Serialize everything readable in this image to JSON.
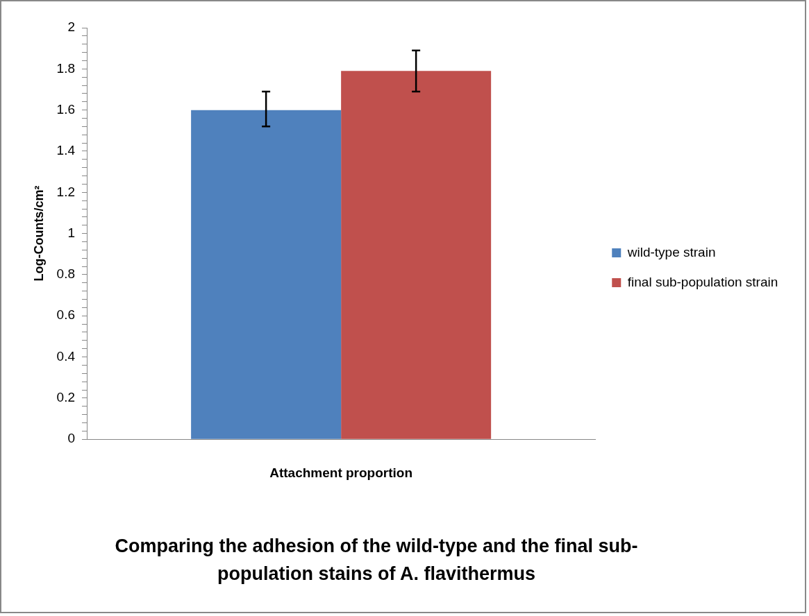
{
  "chart_data": {
    "type": "bar",
    "title": "Comparing the adhesion of the wild-type and the final sub-population stains of A. flavithermus",
    "ylabel": "Log-Counts/cm²",
    "categories": [
      "Attachment proportion"
    ],
    "series": [
      {
        "name": "wild-type strain",
        "color": "#4f81bd",
        "values": [
          1.6
        ],
        "errors": [
          [
            1.52,
            1.69
          ]
        ]
      },
      {
        "name": "final sub-population strain",
        "color": "#c0504d",
        "values": [
          1.79
        ],
        "errors": [
          [
            1.69,
            1.89
          ]
        ]
      }
    ],
    "ylim": [
      0,
      2
    ],
    "yticks": [
      0,
      {
        "value": 0.04,
        "label": null
      },
      {
        "value": 0.08,
        "label": null
      },
      {
        "value": 0.12,
        "label": null
      },
      {
        "value": 0.16,
        "label": null
      },
      0.2,
      {
        "value": 0.24,
        "label": null
      },
      {
        "value": 0.28,
        "label": null
      },
      {
        "value": 0.32,
        "label": null
      },
      {
        "value": 0.36,
        "label": null
      },
      0.4,
      {
        "value": 0.44,
        "label": null
      },
      {
        "value": 0.48,
        "label": null
      },
      {
        "value": 0.52,
        "label": null
      },
      {
        "value": 0.56,
        "label": null
      },
      0.6,
      {
        "value": 0.64,
        "label": null
      },
      {
        "value": 0.68,
        "label": null
      },
      {
        "value": 0.72,
        "label": null
      },
      {
        "value": 0.76,
        "label": null
      },
      0.8,
      {
        "value": 0.84,
        "label": null
      },
      {
        "value": 0.88,
        "label": null
      },
      {
        "value": 0.92,
        "label": null
      },
      {
        "value": 0.96,
        "label": null
      },
      1,
      {
        "value": 1.04,
        "label": null
      },
      {
        "value": 1.08,
        "label": null
      },
      {
        "value": 1.12,
        "label": null
      },
      {
        "value": 1.16,
        "label": null
      },
      1.2,
      {
        "value": 1.24,
        "label": null
      },
      {
        "value": 1.28,
        "label": null
      },
      {
        "value": 1.32,
        "label": null
      },
      {
        "value": 1.36,
        "label": null
      },
      1.4,
      {
        "value": 1.44,
        "label": null
      },
      {
        "value": 1.48,
        "label": null
      },
      {
        "value": 1.52,
        "label": null
      },
      {
        "value": 1.56,
        "label": null
      },
      1.6,
      {
        "value": 1.64,
        "label": null
      },
      {
        "value": 1.68,
        "label": null
      },
      {
        "value": 1.72,
        "label": null
      },
      {
        "value": 1.76,
        "label": null
      },
      1.8,
      {
        "value": 1.84,
        "label": null
      },
      {
        "value": 1.88,
        "label": null
      },
      {
        "value": 1.92,
        "label": null
      },
      {
        "value": 1.96,
        "label": null
      },
      2
    ],
    "grid": false,
    "legend": "right"
  }
}
